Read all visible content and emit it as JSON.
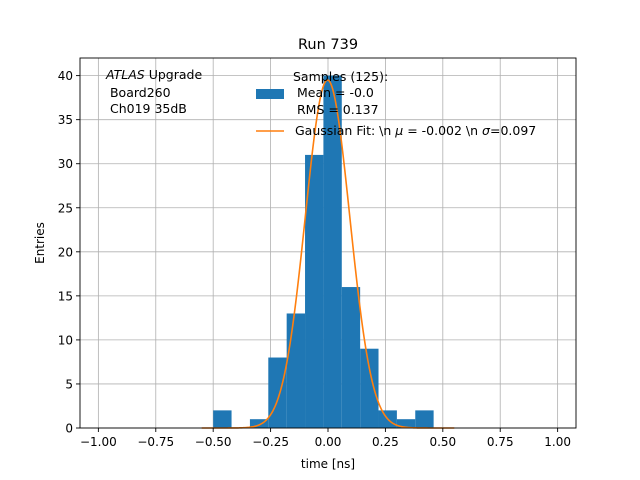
{
  "chart_data": {
    "type": "bar",
    "title": "Run 739",
    "xlabel": "time [ns]",
    "ylabel": "Entries",
    "xlim": [
      -1.08,
      1.08
    ],
    "ylim": [
      0,
      42
    ],
    "grid": true,
    "x_ticks": [
      -1.0,
      -0.75,
      -0.5,
      -0.25,
      0.0,
      0.25,
      0.5,
      0.75,
      1.0
    ],
    "x_tick_labels": [
      "−1.00",
      "−0.75",
      "−0.50",
      "−0.25",
      "0.00",
      "0.25",
      "0.50",
      "0.75",
      "1.00"
    ],
    "y_ticks": [
      0,
      5,
      10,
      15,
      20,
      25,
      30,
      35,
      40
    ],
    "y_tick_labels": [
      "0",
      "5",
      "10",
      "15",
      "20",
      "25",
      "30",
      "35",
      "40"
    ],
    "histogram": {
      "bin_edges": [
        -0.5,
        -0.42,
        -0.34,
        -0.26,
        -0.18,
        -0.1,
        -0.02,
        0.06,
        0.14,
        0.22,
        0.3,
        0.38,
        0.46
      ],
      "counts": [
        2,
        0,
        1,
        8,
        13,
        31,
        40,
        16,
        9,
        2,
        1,
        2
      ],
      "color": "#1f77b4"
    },
    "fit_curve": {
      "type": "gaussian",
      "mu": -0.002,
      "sigma": 0.097,
      "amplitude": 39.5,
      "color": "#ff7f0e"
    },
    "annotation": {
      "italic": "ATLAS",
      "rest": " Upgrade",
      "line2": " Board260",
      "line3": " Ch019 35dB"
    },
    "legend": {
      "placement": "top-right",
      "title": "Samples (125):",
      "hist_label_1": " Mean = -0.0",
      "hist_label_2": " RMS = 0.137",
      "fit_label_a": "Gaussian Fit: \\n ",
      "fit_label_mu": "μ",
      "fit_label_b": " = -0.002 \\n ",
      "fit_label_sigma": "σ",
      "fit_label_c": "=0.097"
    }
  }
}
